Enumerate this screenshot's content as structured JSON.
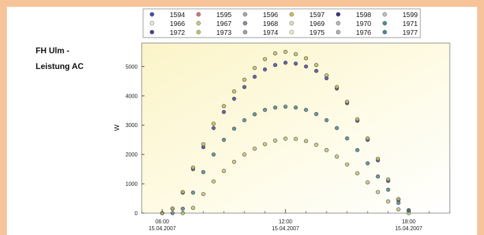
{
  "chart_data": {
    "type": "scatter",
    "title": [
      "FH Ulm -",
      "Leistung AC"
    ],
    "xlabel": "",
    "ylabel": "W",
    "ylim": [
      0,
      5800
    ],
    "yticks": [
      0,
      1000,
      2000,
      3000,
      4000,
      5000
    ],
    "xlim": [
      "15.04.2007 05:00",
      "15.04.2007 20:00"
    ],
    "xticks": [
      {
        "x": "15.04.2007 06:00",
        "time": "06:00",
        "date": "15.04.2007"
      },
      {
        "x": "15.04.2007 12:00",
        "time": "12:00",
        "date": "15.04.2007"
      },
      {
        "x": "15.04.2007 18:00",
        "time": "18:00",
        "date": "15.04.2007"
      }
    ],
    "grid": false,
    "legend_position": "top",
    "legend": [
      "1594",
      "1595",
      "1596",
      "1597",
      "1598",
      "1599",
      "1966",
      "1967",
      "1968",
      "1969",
      "1970",
      "1971",
      "1972",
      "1973",
      "1974",
      "1975",
      "1976",
      "1977"
    ],
    "legend_colors": {
      "1594": "#4a4aa8",
      "1595": "#d07878",
      "1596": "#a8a8a8",
      "1597": "#c8c060",
      "1598": "#3a3a78",
      "1599": "#c0c0c0",
      "1966": "#e8e8e8",
      "1967": "#c8c880",
      "1968": "#8a8aa0",
      "1969": "#e0e0c8",
      "1970": "#b8b8b8",
      "1971": "#4e8a96",
      "1972": "#45458c",
      "1973": "#c4c474",
      "1974": "#a0a0a0",
      "1975": "#ececd6",
      "1976": "#b0b0b0",
      "1977": "#4a8896"
    },
    "series": [
      {
        "name": "1594",
        "color": "#4a4aa8",
        "points": [
          [
            "06:00",
            0
          ],
          [
            "06:30",
            150
          ],
          [
            "07:00",
            700
          ],
          [
            "07:30",
            1500
          ],
          [
            "08:00",
            2250
          ],
          [
            "08:30",
            2900
          ],
          [
            "09:00",
            3450
          ],
          [
            "09:30",
            3900
          ],
          [
            "10:00",
            4300
          ],
          [
            "10:30",
            4650
          ],
          [
            "11:00",
            4900
          ],
          [
            "11:30",
            5050
          ],
          [
            "12:00",
            5130
          ],
          [
            "12:30",
            5100
          ],
          [
            "13:00",
            5000
          ],
          [
            "13:30",
            4850
          ],
          [
            "14:00",
            4600
          ],
          [
            "14:30",
            4250
          ],
          [
            "15:00",
            3750
          ],
          [
            "15:30",
            3150
          ],
          [
            "16:00",
            2500
          ],
          [
            "16:30",
            1800
          ],
          [
            "17:00",
            1100
          ],
          [
            "17:30",
            450
          ],
          [
            "18:00",
            80
          ]
        ]
      },
      {
        "name": "1597",
        "color": "#c8c060",
        "points": [
          [
            "06:00",
            0
          ],
          [
            "06:30",
            160
          ],
          [
            "07:00",
            720
          ],
          [
            "07:30",
            1550
          ],
          [
            "08:00",
            2350
          ],
          [
            "08:30",
            3050
          ],
          [
            "09:00",
            3650
          ],
          [
            "09:30",
            4150
          ],
          [
            "10:00",
            4550
          ],
          [
            "10:30",
            4950
          ],
          [
            "11:00",
            5250
          ],
          [
            "11:30",
            5450
          ],
          [
            "12:00",
            5500
          ],
          [
            "12:30",
            5420
          ],
          [
            "13:00",
            5280
          ],
          [
            "13:30",
            5050
          ],
          [
            "14:00",
            4700
          ],
          [
            "14:30",
            4300
          ],
          [
            "15:00",
            3800
          ],
          [
            "15:30",
            3200
          ],
          [
            "16:00",
            2550
          ],
          [
            "16:30",
            1850
          ],
          [
            "17:00",
            1150
          ],
          [
            "17:30",
            480
          ],
          [
            "18:00",
            90
          ]
        ]
      },
      {
        "name": "1971",
        "color": "#4e8a96",
        "points": [
          [
            "06:30",
            0
          ],
          [
            "07:00",
            150
          ],
          [
            "07:30",
            700
          ],
          [
            "08:00",
            1400
          ],
          [
            "08:30",
            2000
          ],
          [
            "09:00",
            2500
          ],
          [
            "09:30",
            2880
          ],
          [
            "10:00",
            3170
          ],
          [
            "10:30",
            3370
          ],
          [
            "11:00",
            3520
          ],
          [
            "11:30",
            3600
          ],
          [
            "12:00",
            3630
          ],
          [
            "12:30",
            3600
          ],
          [
            "13:00",
            3520
          ],
          [
            "13:30",
            3380
          ],
          [
            "14:00",
            3170
          ],
          [
            "14:30",
            2900
          ],
          [
            "15:00",
            2550
          ],
          [
            "15:30",
            2150
          ],
          [
            "16:00",
            1700
          ],
          [
            "16:30",
            1250
          ],
          [
            "17:00",
            800
          ],
          [
            "17:30",
            350
          ],
          [
            "18:00",
            100
          ]
        ]
      },
      {
        "name": "1967",
        "color": "#c8c880",
        "points": [
          [
            "07:00",
            0
          ],
          [
            "07:30",
            180
          ],
          [
            "08:00",
            650
          ],
          [
            "08:30",
            1080
          ],
          [
            "09:00",
            1440
          ],
          [
            "09:30",
            1750
          ],
          [
            "10:00",
            2000
          ],
          [
            "10:30",
            2200
          ],
          [
            "11:00",
            2350
          ],
          [
            "11:30",
            2470
          ],
          [
            "12:00",
            2540
          ],
          [
            "12:30",
            2530
          ],
          [
            "13:00",
            2460
          ],
          [
            "13:30",
            2330
          ],
          [
            "14:00",
            2150
          ],
          [
            "14:30",
            1930
          ],
          [
            "15:00",
            1660
          ],
          [
            "15:30",
            1360
          ],
          [
            "16:00",
            1050
          ],
          [
            "16:30",
            720
          ],
          [
            "17:00",
            400
          ],
          [
            "17:30",
            130
          ],
          [
            "18:00",
            0
          ]
        ]
      }
    ]
  }
}
